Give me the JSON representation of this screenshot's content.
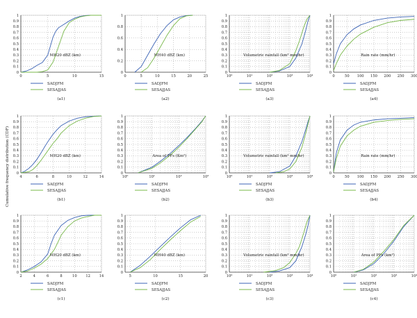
{
  "figure": {
    "ylabel": "Cumulative frequency distribution (CDF)"
  },
  "legend_labels": [
    "SADJFM",
    "SESAJJAS"
  ],
  "colors": {
    "SADJFM": "#3b63b5",
    "SESAJJAS": "#78b84a",
    "grid": "#9a9a9a",
    "axis": "#444444"
  },
  "chart_data": [
    {
      "id": "a1",
      "label": "(a1)",
      "type": "line",
      "xlabel": "MH20 dBZ (km)",
      "xscale": "linear",
      "xlim": [
        0,
        15
      ],
      "xticks": [
        0,
        5,
        10,
        15
      ],
      "ylim": [
        0,
        1
      ],
      "yticks": [
        0,
        0.1,
        0.2,
        0.3,
        0.4,
        0.5,
        0.6,
        0.7,
        0.8,
        0.9,
        1
      ],
      "series": [
        {
          "name": "SADJFM",
          "x": [
            0,
            1,
            2,
            3,
            4,
            5,
            6,
            6.5,
            7,
            8,
            9,
            10,
            11,
            12,
            13,
            15
          ],
          "y": [
            0,
            0.02,
            0.06,
            0.12,
            0.17,
            0.3,
            0.62,
            0.72,
            0.78,
            0.84,
            0.9,
            0.95,
            0.98,
            0.995,
            1,
            1
          ]
        },
        {
          "name": "SESAJJAS",
          "x": [
            0,
            3,
            4,
            5,
            6,
            7,
            8,
            9,
            10,
            11,
            12,
            13,
            15
          ],
          "y": [
            0,
            0,
            0.01,
            0.04,
            0.18,
            0.45,
            0.72,
            0.87,
            0.93,
            0.97,
            0.99,
            1,
            1
          ]
        }
      ]
    },
    {
      "id": "a2",
      "label": "(a2)",
      "type": "line",
      "xlabel": "MH40 dBZ (km)",
      "xscale": "linear",
      "xlim": [
        0,
        25
      ],
      "xticks": [
        0,
        5,
        10,
        15,
        20,
        25
      ],
      "ylim": [
        0,
        1
      ],
      "yticks": [
        0,
        0.2,
        0.4,
        0.6,
        0.8,
        1
      ],
      "series": [
        {
          "name": "SADJFM",
          "x": [
            3,
            5,
            7,
            9,
            11,
            13,
            15,
            17,
            19,
            21
          ],
          "y": [
            0,
            0.1,
            0.3,
            0.5,
            0.68,
            0.82,
            0.92,
            0.97,
            0.995,
            1
          ]
        },
        {
          "name": "SESAJJAS",
          "x": [
            5,
            7,
            9,
            11,
            13,
            15,
            17,
            19,
            21
          ],
          "y": [
            0,
            0.08,
            0.25,
            0.45,
            0.65,
            0.82,
            0.94,
            0.99,
            1
          ]
        }
      ]
    },
    {
      "id": "a3",
      "label": "(a3)",
      "type": "line",
      "xlabel": "Volumetric rainfall (km² mm/hr)",
      "xscale": "log",
      "xlim": [
        1,
        10000
      ],
      "xticks": [
        1,
        10,
        100,
        1000,
        10000
      ],
      "ylim": [
        0,
        1
      ],
      "yticks": [
        0,
        0.1,
        0.2,
        0.3,
        0.4,
        0.5,
        0.6,
        0.7,
        0.8,
        0.9,
        1
      ],
      "series": [
        {
          "name": "SADJFM",
          "x": [
            100,
            300,
            1000,
            2000,
            4000,
            6000,
            8000,
            10000
          ],
          "y": [
            0,
            0.02,
            0.1,
            0.25,
            0.5,
            0.72,
            0.9,
            1
          ]
        },
        {
          "name": "SESAJJAS",
          "x": [
            100,
            300,
            1000,
            2000,
            3000,
            5000,
            7000,
            10000
          ],
          "y": [
            0,
            0.03,
            0.15,
            0.38,
            0.55,
            0.8,
            0.93,
            1
          ]
        }
      ]
    },
    {
      "id": "a4",
      "label": "(a4)",
      "type": "line",
      "xlabel": "Rain rate (mm/hr)",
      "xscale": "linear",
      "xlim": [
        0,
        300
      ],
      "xticks": [
        0,
        50,
        100,
        150,
        200,
        250,
        300
      ],
      "ylim": [
        0,
        1
      ],
      "yticks": [
        0,
        0.1,
        0.2,
        0.3,
        0.4,
        0.5,
        0.6,
        0.7,
        0.8,
        0.9,
        1
      ],
      "series": [
        {
          "name": "SADJFM",
          "x": [
            0,
            10,
            25,
            50,
            75,
            100,
            150,
            200,
            250,
            300
          ],
          "y": [
            0.15,
            0.32,
            0.5,
            0.66,
            0.76,
            0.83,
            0.91,
            0.95,
            0.97,
            0.98
          ]
        },
        {
          "name": "SESAJJAS",
          "x": [
            0,
            10,
            25,
            50,
            75,
            100,
            150,
            200,
            250,
            300
          ],
          "y": [
            0.03,
            0.15,
            0.3,
            0.46,
            0.58,
            0.67,
            0.79,
            0.87,
            0.91,
            0.93
          ]
        }
      ]
    },
    {
      "id": "b1",
      "label": "(b1)",
      "type": "line",
      "xlabel": "MH20 dBZ (km)",
      "xscale": "linear",
      "xlim": [
        4,
        14
      ],
      "xticks": [
        4,
        6,
        8,
        10,
        12,
        14
      ],
      "ylim": [
        0,
        1
      ],
      "yticks": [
        0,
        0.1,
        0.2,
        0.3,
        0.4,
        0.5,
        0.6,
        0.7,
        0.8,
        0.9,
        1
      ],
      "series": [
        {
          "name": "SADJFM",
          "x": [
            4,
            4.5,
            5,
            5.5,
            6,
            6.5,
            7,
            7.5,
            8,
            8.5,
            9,
            10,
            11,
            12,
            13,
            14
          ],
          "y": [
            0,
            0.03,
            0.08,
            0.15,
            0.24,
            0.35,
            0.47,
            0.58,
            0.68,
            0.76,
            0.83,
            0.91,
            0.96,
            0.985,
            0.995,
            1
          ]
        },
        {
          "name": "SESAJJAS",
          "x": [
            4,
            5,
            5.5,
            6,
            6.5,
            7,
            7.5,
            8,
            8.5,
            9,
            10,
            11,
            12,
            13,
            14
          ],
          "y": [
            0,
            0.02,
            0.06,
            0.13,
            0.22,
            0.32,
            0.42,
            0.52,
            0.6,
            0.7,
            0.83,
            0.91,
            0.96,
            0.99,
            1
          ]
        }
      ]
    },
    {
      "id": "b2",
      "label": "(b2)",
      "type": "line",
      "xlabel": "Area of PFs (Km²)",
      "xscale": "log",
      "xlim": [
        1,
        1000
      ],
      "xticks": [
        1,
        10,
        100,
        1000
      ],
      "ylim": [
        0,
        1
      ],
      "yticks": [
        0,
        0.1,
        0.2,
        0.3,
        0.4,
        0.5,
        0.6,
        0.7,
        0.8,
        0.9,
        1
      ],
      "series": [
        {
          "name": "SADJFM",
          "x": [
            3,
            10,
            20,
            50,
            100,
            200,
            400,
            700,
            1000
          ],
          "y": [
            0,
            0.1,
            0.2,
            0.35,
            0.48,
            0.62,
            0.77,
            0.9,
            1
          ]
        },
        {
          "name": "SESAJJAS",
          "x": [
            3,
            10,
            20,
            50,
            100,
            200,
            400,
            700,
            1000
          ],
          "y": [
            0,
            0.08,
            0.17,
            0.32,
            0.45,
            0.6,
            0.76,
            0.89,
            1
          ]
        }
      ]
    },
    {
      "id": "b3",
      "label": "(b3)",
      "type": "line",
      "xlabel": "Volumetric rainfall (km² mm/hr)",
      "xscale": "log",
      "xlim": [
        1,
        10000
      ],
      "xticks": [
        1,
        10,
        100,
        1000,
        10000
      ],
      "ylim": [
        0,
        1
      ],
      "yticks": [
        0,
        0.1,
        0.2,
        0.3,
        0.4,
        0.5,
        0.6,
        0.7,
        0.8,
        0.9,
        1
      ],
      "series": [
        {
          "name": "SADJFM",
          "x": [
            100,
            300,
            1000,
            2000,
            4000,
            6000,
            8000,
            10000
          ],
          "y": [
            0,
            0.02,
            0.12,
            0.3,
            0.55,
            0.75,
            0.9,
            1
          ]
        },
        {
          "name": "SESAJJAS",
          "x": [
            200,
            500,
            1000,
            2000,
            4000,
            6000,
            8000,
            10000
          ],
          "y": [
            0,
            0.02,
            0.07,
            0.2,
            0.45,
            0.68,
            0.86,
            1
          ]
        }
      ]
    },
    {
      "id": "b4",
      "label": "(b4)",
      "type": "line",
      "xlabel": "Rain rate (mm/hr)",
      "xscale": "linear",
      "xlim": [
        0,
        300
      ],
      "xticks": [
        0,
        50,
        100,
        150,
        200,
        250,
        300
      ],
      "ylim": [
        0,
        1
      ],
      "yticks": [
        0,
        0.1,
        0.2,
        0.3,
        0.4,
        0.5,
        0.6,
        0.7,
        0.8,
        0.9,
        1
      ],
      "series": [
        {
          "name": "SADJFM",
          "x": [
            0,
            10,
            25,
            50,
            75,
            100,
            150,
            200,
            250,
            300
          ],
          "y": [
            0.02,
            0.35,
            0.58,
            0.75,
            0.84,
            0.89,
            0.93,
            0.95,
            0.96,
            0.97
          ]
        },
        {
          "name": "SESAJJAS",
          "x": [
            0,
            10,
            25,
            50,
            75,
            100,
            150,
            200,
            250,
            300
          ],
          "y": [
            0.02,
            0.25,
            0.47,
            0.65,
            0.75,
            0.82,
            0.89,
            0.92,
            0.94,
            0.95
          ]
        }
      ]
    },
    {
      "id": "c1",
      "label": "(c1)",
      "type": "line",
      "xlabel": "MH20 dBZ (km)",
      "xscale": "linear",
      "xlim": [
        2,
        14
      ],
      "xticks": [
        2,
        4,
        6,
        8,
        10,
        12,
        14
      ],
      "ylim": [
        0,
        1
      ],
      "yticks": [
        0,
        0.1,
        0.2,
        0.3,
        0.4,
        0.5,
        0.6,
        0.7,
        0.8,
        0.9,
        1
      ],
      "series": [
        {
          "name": "SADJFM",
          "x": [
            2,
            3,
            4,
            5,
            6,
            6.5,
            7,
            8,
            9,
            10,
            11,
            12,
            14
          ],
          "y": [
            0,
            0.04,
            0.1,
            0.18,
            0.32,
            0.5,
            0.65,
            0.82,
            0.91,
            0.96,
            0.99,
            1,
            1
          ]
        },
        {
          "name": "SESAJJAS",
          "x": [
            2,
            3,
            4,
            5,
            6,
            7,
            7.5,
            8,
            9,
            10,
            11,
            12,
            13,
            14
          ],
          "y": [
            0,
            0.02,
            0.07,
            0.14,
            0.24,
            0.4,
            0.52,
            0.65,
            0.8,
            0.9,
            0.95,
            0.98,
            1,
            1
          ]
        }
      ]
    },
    {
      "id": "c2",
      "label": "(c2)",
      "type": "line",
      "xlabel": "MH40 dBZ (km)",
      "xscale": "linear",
      "xlim": [
        4,
        20
      ],
      "xticks": [
        5,
        10,
        15,
        20
      ],
      "ylim": [
        0,
        1
      ],
      "yticks": [
        0,
        0.1,
        0.2,
        0.3,
        0.4,
        0.5,
        0.6,
        0.7,
        0.8,
        0.9,
        1
      ],
      "series": [
        {
          "name": "SADJFM",
          "x": [
            5,
            7,
            9,
            11,
            13,
            15,
            17,
            19
          ],
          "y": [
            0,
            0.12,
            0.28,
            0.45,
            0.62,
            0.78,
            0.92,
            1
          ]
        },
        {
          "name": "SESAJJAS",
          "x": [
            5,
            7,
            9,
            11,
            13,
            15,
            17,
            19
          ],
          "y": [
            0,
            0.08,
            0.22,
            0.4,
            0.57,
            0.73,
            0.88,
            0.98
          ]
        }
      ]
    },
    {
      "id": "c3",
      "label": "(c3)",
      "type": "line",
      "xlabel": "Volumetric rainfall (km² mm/hr)",
      "xscale": "log",
      "xlim": [
        1,
        10000
      ],
      "xticks": [
        1,
        10,
        100,
        1000,
        10000
      ],
      "ylim": [
        0,
        1
      ],
      "yticks": [
        0,
        0.1,
        0.2,
        0.3,
        0.4,
        0.5,
        0.6,
        0.7,
        0.8,
        0.9,
        1
      ],
      "series": [
        {
          "name": "SADJFM",
          "x": [
            100,
            300,
            1000,
            2000,
            4000,
            6000,
            8000,
            10000
          ],
          "y": [
            0,
            0.02,
            0.08,
            0.2,
            0.45,
            0.65,
            0.82,
            1
          ]
        },
        {
          "name": "SESAJJAS",
          "x": [
            50,
            200,
            500,
            1000,
            2000,
            3000,
            5000,
            7000,
            10000
          ],
          "y": [
            0,
            0.03,
            0.08,
            0.17,
            0.33,
            0.45,
            0.7,
            0.88,
            1
          ]
        }
      ]
    },
    {
      "id": "c4",
      "label": "(c4)",
      "type": "line",
      "xlabel": "Area of PFs (km²)",
      "xscale": "log",
      "xlim": [
        1,
        10000
      ],
      "xticks": [
        1,
        10,
        100,
        1000,
        10000
      ],
      "ylim": [
        0,
        1
      ],
      "yticks": [
        0,
        0.1,
        0.2,
        0.3,
        0.4,
        0.5,
        0.6,
        0.7,
        0.8,
        0.9,
        1
      ],
      "series": [
        {
          "name": "SADJFM",
          "x": [
            10,
            30,
            100,
            300,
            1000,
            3000,
            10000
          ],
          "y": [
            0,
            0.04,
            0.15,
            0.32,
            0.55,
            0.8,
            1
          ]
        },
        {
          "name": "SESAJJAS",
          "x": [
            10,
            30,
            100,
            300,
            1000,
            3000,
            10000
          ],
          "y": [
            0,
            0.05,
            0.18,
            0.36,
            0.58,
            0.82,
            1
          ]
        }
      ]
    }
  ]
}
